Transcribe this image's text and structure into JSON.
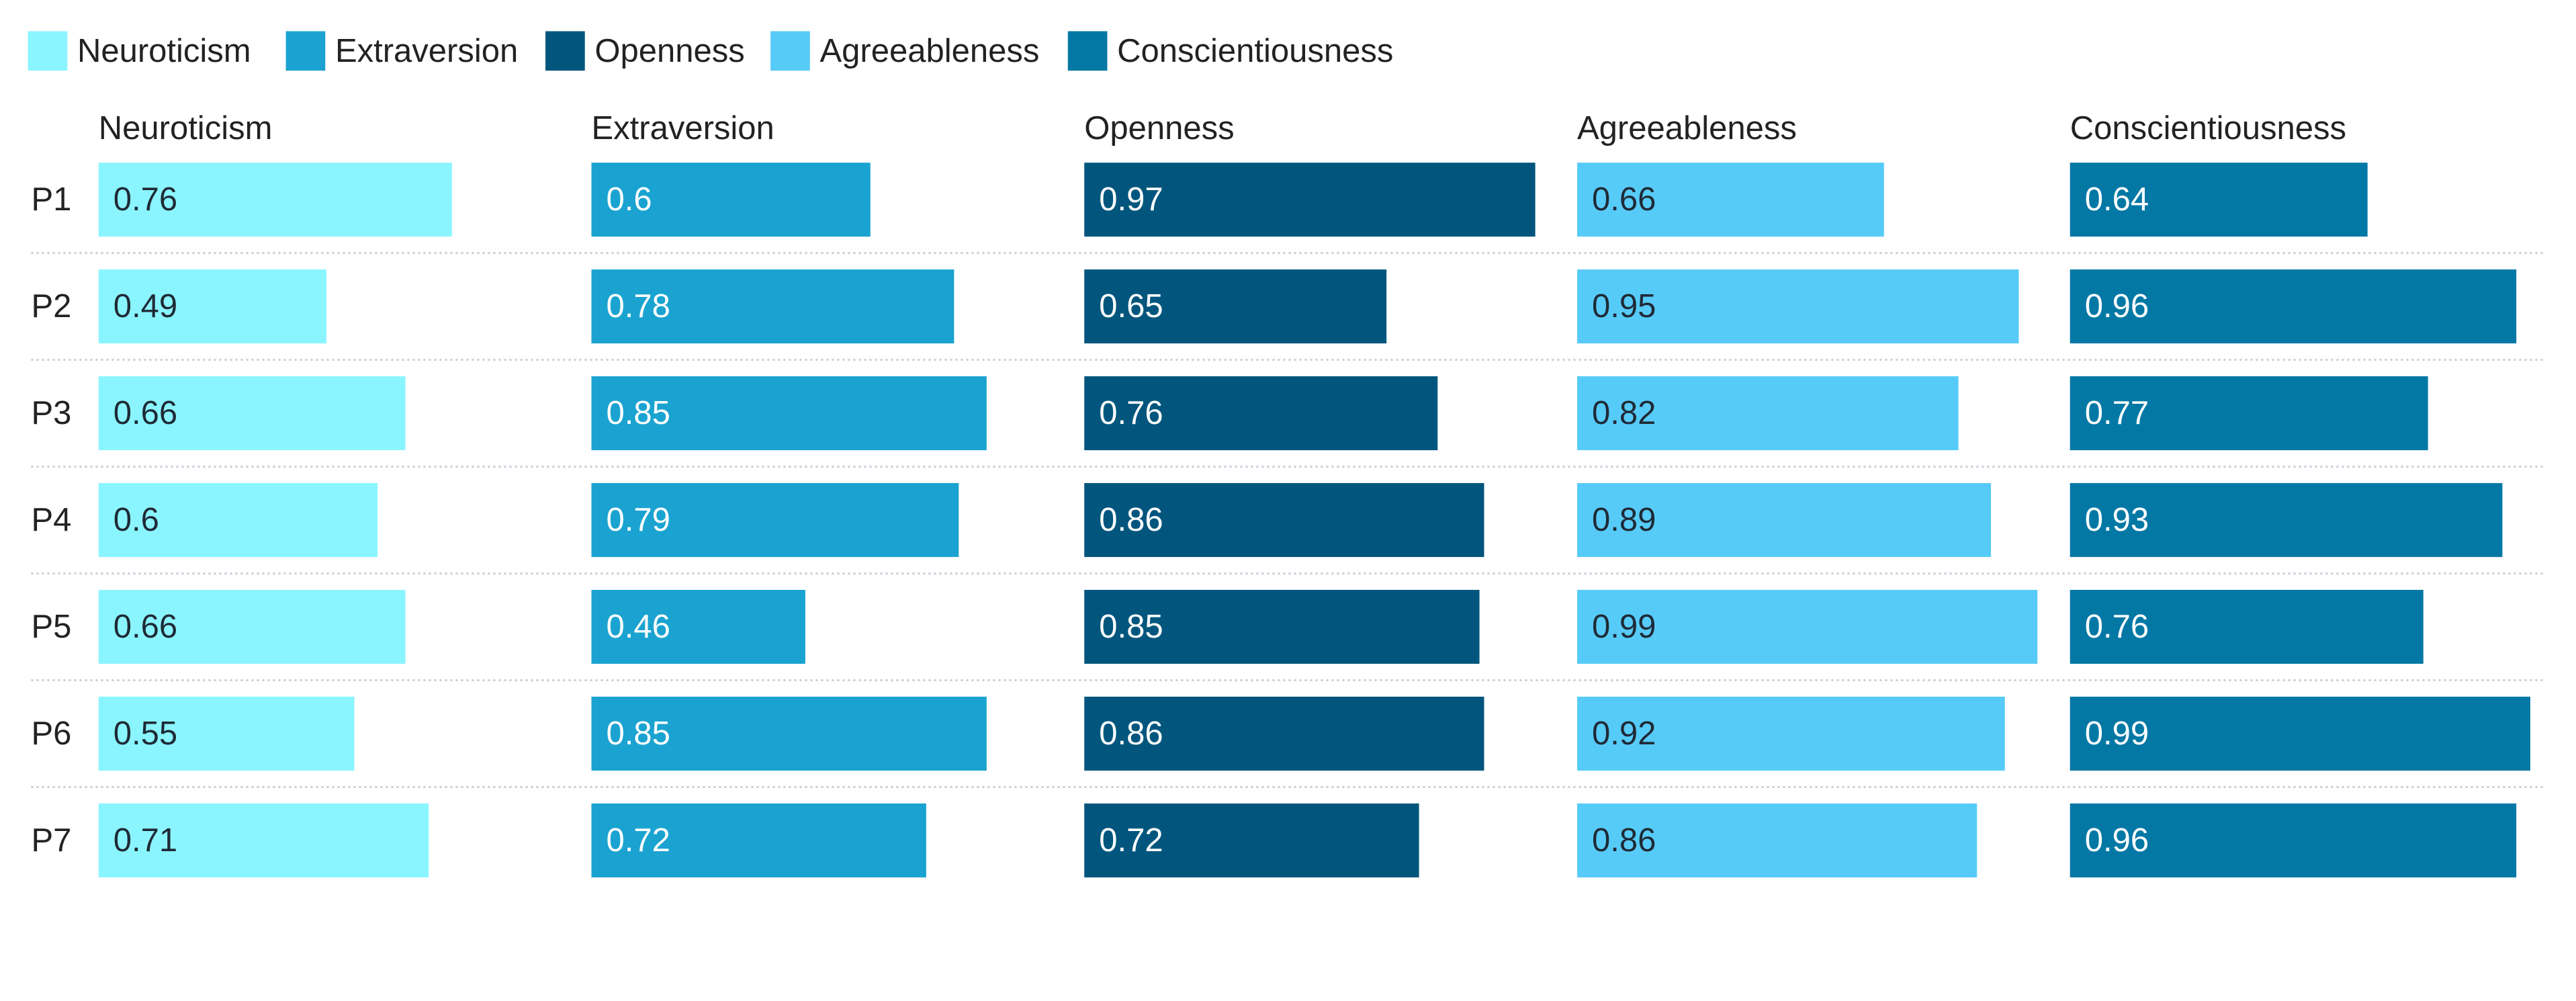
{
  "chart_data": {
    "type": "bar",
    "orientation": "horizontal",
    "layout": "small-multiples",
    "title": "",
    "legend_position": "top-left",
    "xlim": [
      0,
      1
    ],
    "categories": [
      "P1",
      "P2",
      "P3",
      "P4",
      "P5",
      "P6",
      "P7"
    ],
    "series": [
      {
        "name": "Neuroticism",
        "color": "#8af5ff",
        "label_color": "dark",
        "values": [
          0.76,
          0.49,
          0.66,
          0.6,
          0.66,
          0.55,
          0.71
        ]
      },
      {
        "name": "Extraversion",
        "color": "#1aa3d0",
        "label_color": "light",
        "values": [
          0.6,
          0.78,
          0.85,
          0.79,
          0.46,
          0.85,
          0.72
        ]
      },
      {
        "name": "Openness",
        "color": "#02567d",
        "label_color": "light",
        "values": [
          0.97,
          0.65,
          0.76,
          0.86,
          0.85,
          0.86,
          0.72
        ]
      },
      {
        "name": "Agreeableness",
        "color": "#57cbf7",
        "label_color": "dark",
        "values": [
          0.66,
          0.95,
          0.82,
          0.89,
          0.99,
          0.92,
          0.86
        ]
      },
      {
        "name": "Conscientiousness",
        "color": "#0378a5",
        "label_color": "light",
        "values": [
          0.64,
          0.96,
          0.77,
          0.93,
          0.76,
          0.99,
          0.96
        ]
      }
    ],
    "grid": {
      "row_separators": true,
      "style": "dotted",
      "color": "#c9c9d6"
    }
  }
}
